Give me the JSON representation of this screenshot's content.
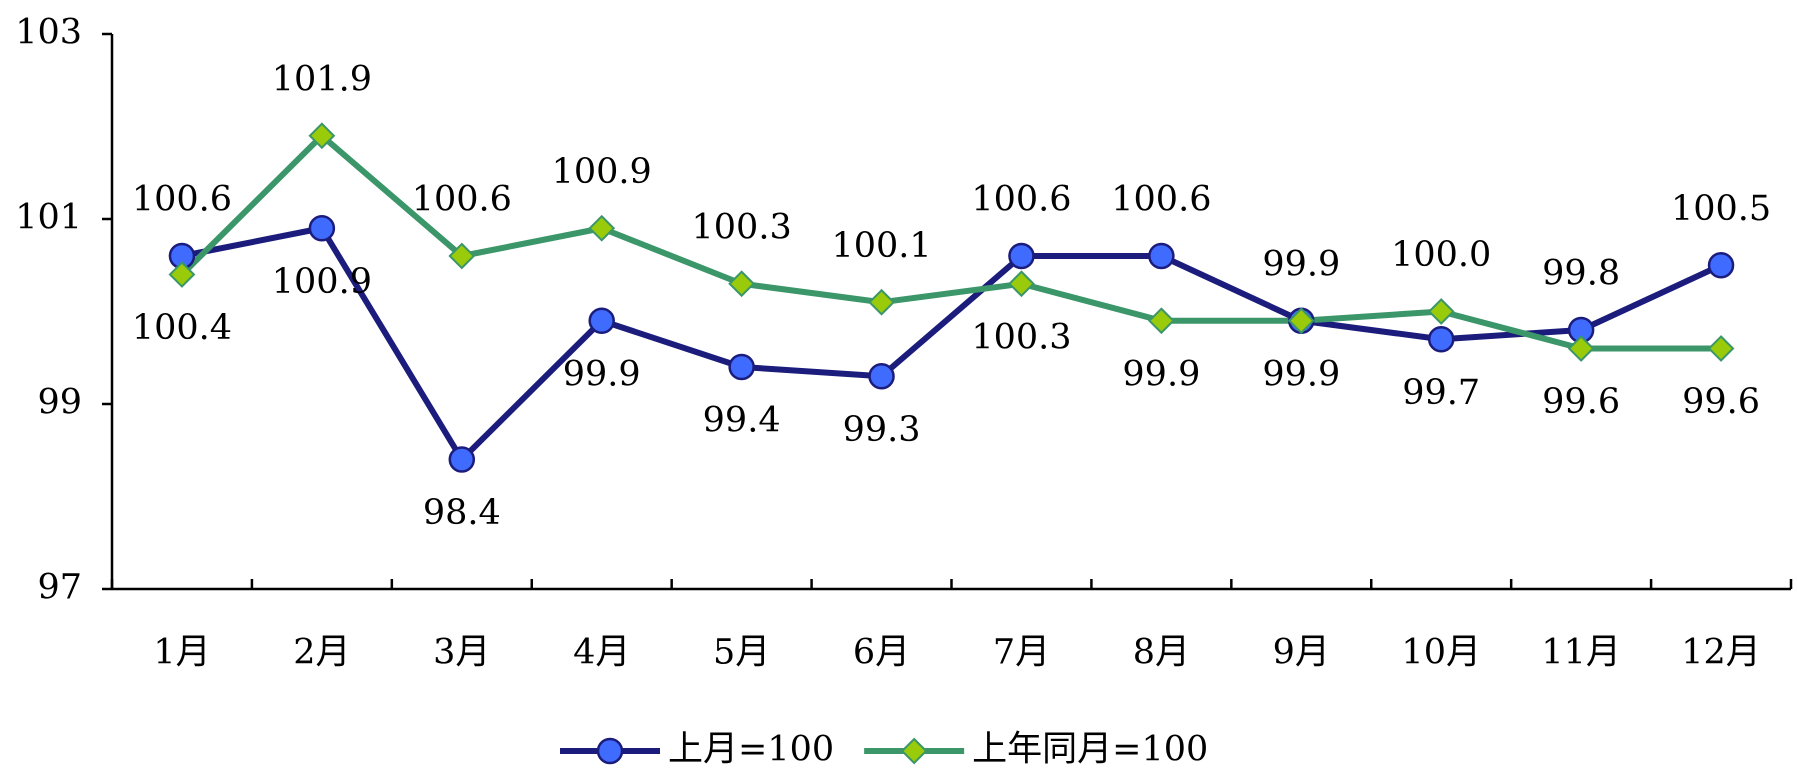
{
  "chart_data": {
    "type": "line",
    "categories": [
      "1月",
      "2月",
      "3月",
      "4月",
      "5月",
      "6月",
      "7月",
      "8月",
      "9月",
      "10月",
      "11月",
      "12月"
    ],
    "series": [
      {
        "name": "上月=100",
        "color": "#1b1c7c",
        "marker_color": "#3f6bff",
        "marker": "circle",
        "values": [
          100.6,
          100.9,
          98.4,
          99.9,
          99.4,
          99.3,
          100.6,
          100.6,
          99.9,
          99.7,
          99.8,
          100.5
        ],
        "value_labels": [
          "100.6",
          "100.9",
          "98.4",
          "99.9",
          "99.4",
          "99.3",
          "100.6",
          "100.6",
          "99.9",
          "99.7",
          "99.8",
          "100.5"
        ]
      },
      {
        "name": "上年同月=100",
        "color": "#3b9669",
        "marker_color": "#9acb0a",
        "marker": "diamond",
        "values": [
          100.4,
          101.9,
          100.6,
          100.9,
          100.3,
          100.1,
          100.3,
          99.9,
          99.9,
          100.0,
          99.6,
          99.6
        ],
        "value_labels": [
          "100.4",
          "101.9",
          "100.6",
          "100.9",
          "100.3",
          "100.1",
          "100.3",
          "99.9",
          "99.9",
          "100.0",
          "99.6",
          "99.6"
        ]
      }
    ],
    "ylim": [
      97,
      103
    ],
    "yticks": [
      97,
      99,
      101,
      103
    ],
    "grid": false,
    "legend": "bottom"
  }
}
